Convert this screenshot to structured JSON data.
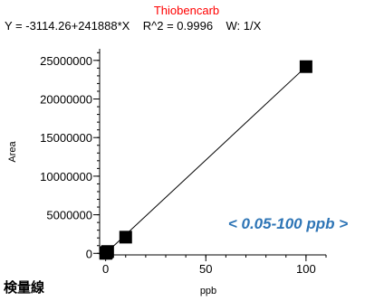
{
  "chart_data": {
    "type": "scatter",
    "title": "Thiobencarb",
    "equation": "Y = -3114.26+241888*X    R^2 = 0.9996    W: 1/X",
    "xlabel": "ppb",
    "ylabel": "Area",
    "xlim": [
      -3,
      110
    ],
    "ylim": [
      -200000,
      26500000
    ],
    "x_ticks": [
      0,
      50,
      100
    ],
    "y_ticks": [
      0,
      5000000,
      10000000,
      15000000,
      20000000,
      25000000
    ],
    "x_tick_labels": [
      "0",
      "50",
      "100"
    ],
    "y_tick_labels": [
      "0",
      "5000000",
      "10000000",
      "15000000",
      "20000000",
      "25000000"
    ],
    "series": [
      {
        "x": [
          0.05,
          0.1,
          0.5,
          1,
          10,
          100
        ],
        "y": [
          9000,
          21000,
          118000,
          239000,
          2100000,
          24190000
        ]
      }
    ],
    "fit_line": {
      "intercept": -3114.26,
      "slope": 241888,
      "x_range": [
        0,
        103
      ]
    },
    "annotation": "< 0.05-100 ppb >",
    "caption": "検量線",
    "colors": {
      "title": "#ff0000",
      "annotation": "#2e75b6",
      "markers": "#000000",
      "line": "#000000"
    }
  }
}
